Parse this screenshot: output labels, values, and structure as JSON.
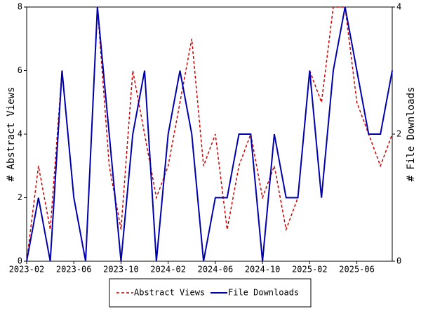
{
  "chart_data": {
    "type": "line",
    "x": [
      "2023-02",
      "2023-03",
      "2023-04",
      "2023-05",
      "2023-06",
      "2023-07",
      "2023-08",
      "2023-09",
      "2023-10",
      "2023-11",
      "2023-12",
      "2024-01",
      "2024-02",
      "2024-03",
      "2024-04",
      "2024-05",
      "2024-06",
      "2024-07",
      "2024-08",
      "2024-09",
      "2024-10",
      "2024-11",
      "2024-12",
      "2025-01",
      "2025-02",
      "2025-03",
      "2025-04",
      "2025-05",
      "2025-06",
      "2025-07",
      "2025-08",
      "2025-09"
    ],
    "xticks": [
      "2023-02",
      "2023-06",
      "2023-10",
      "2024-02",
      "2024-06",
      "2024-10",
      "2025-02",
      "2025-06"
    ],
    "ylabel": "# Abstract Views",
    "y2label": "# File Downloads",
    "ylim": [
      0,
      8
    ],
    "yticks": [
      0,
      2,
      4,
      6,
      8
    ],
    "y2lim": [
      0,
      4
    ],
    "y2ticks": [
      0,
      2,
      4
    ],
    "series": [
      {
        "name": "Abstract Views",
        "color": "#cc0000",
        "dash": true,
        "values": [
          0,
          3,
          1,
          6,
          2,
          0,
          8,
          3,
          1,
          6,
          4,
          2,
          3,
          5,
          7,
          3,
          4,
          1,
          3,
          4,
          2,
          3,
          1,
          2,
          6,
          5,
          8,
          8,
          5,
          4,
          3,
          4
        ]
      },
      {
        "name": "File Downloads",
        "color": "#0000aa",
        "axis": "y2",
        "values": [
          0,
          1,
          0,
          3,
          1,
          0,
          4,
          2,
          0,
          2,
          3,
          0,
          2,
          3,
          2,
          0,
          1,
          1,
          2,
          2,
          0,
          2,
          1,
          1,
          3,
          1,
          3,
          4,
          3,
          2,
          2,
          3
        ]
      }
    ]
  }
}
